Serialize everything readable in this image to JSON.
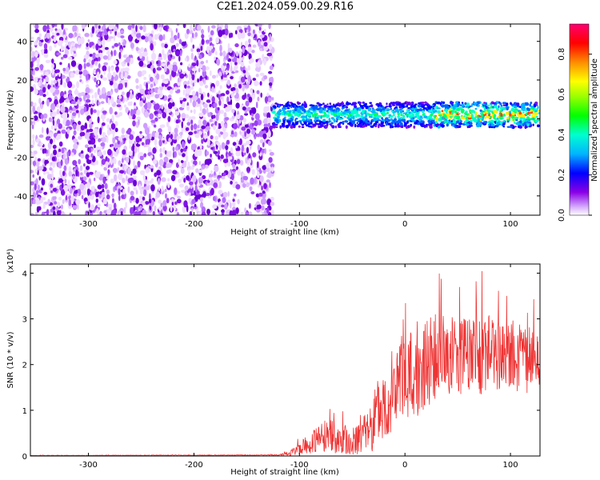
{
  "title": "C2E1.2024.059.00.29.R16",
  "colors": {
    "snr_line": "#ee3333",
    "axis": "#000000",
    "low_density": "#d9b3ff",
    "high_density": "#7a00e6"
  },
  "chart_data": [
    {
      "type": "heatmap",
      "name": "spectrogram",
      "xlabel": "Height of straight line (km)",
      "ylabel": "Frequency (Hz)",
      "xlim": [
        -355,
        128
      ],
      "ylim": [
        -50,
        49
      ],
      "x_ticks": [
        -300,
        -200,
        -100,
        0,
        100
      ],
      "y_ticks": [
        -40,
        -20,
        0,
        20,
        40
      ],
      "noise_region_x": [
        -355,
        -125
      ],
      "signal_band": {
        "x": [
          -125,
          128
        ],
        "center_hz": 2,
        "halfwidth_hz": 4
      },
      "colorbar": {
        "label": "Normalized spectral amplitude",
        "range": [
          0.0,
          0.95
        ],
        "ticks": [
          "0.0",
          "0.2",
          "0.4",
          "0.6",
          "0.8"
        ]
      }
    },
    {
      "type": "line",
      "name": "snr",
      "xlabel": "Height of straight line (km)",
      "ylabel": "SNR (10 * v/v)",
      "yscale_label": "(x10⁴)",
      "xlim": [
        -355,
        128
      ],
      "ylim": [
        0,
        4.2
      ],
      "x_ticks": [
        -300,
        -200,
        -100,
        0,
        100
      ],
      "y_ticks": [
        0,
        1,
        2,
        3,
        4
      ],
      "envelope": {
        "x": [
          -355,
          -120,
          -110,
          -100,
          -90,
          -80,
          -70,
          -60,
          -50,
          -40,
          -30,
          -20,
          -10,
          0,
          10,
          20,
          30,
          40,
          50,
          60,
          70,
          80,
          90,
          100,
          110,
          120,
          128
        ],
        "mean": [
          0.01,
          0.02,
          0.05,
          0.15,
          0.3,
          0.4,
          0.45,
          0.35,
          0.3,
          0.45,
          0.8,
          1.1,
          1.4,
          1.6,
          1.8,
          2.0,
          2.2,
          2.2,
          2.25,
          2.2,
          2.2,
          2.3,
          2.25,
          2.2,
          2.15,
          2.1,
          2.1
        ],
        "spread": [
          0.005,
          0.01,
          0.05,
          0.12,
          0.25,
          0.35,
          0.4,
          0.3,
          0.3,
          0.4,
          0.7,
          0.9,
          1.0,
          1.0,
          1.0,
          0.95,
          0.95,
          0.9,
          0.9,
          0.9,
          0.9,
          0.85,
          0.85,
          0.85,
          0.8,
          0.7,
          0.6
        ]
      }
    }
  ]
}
